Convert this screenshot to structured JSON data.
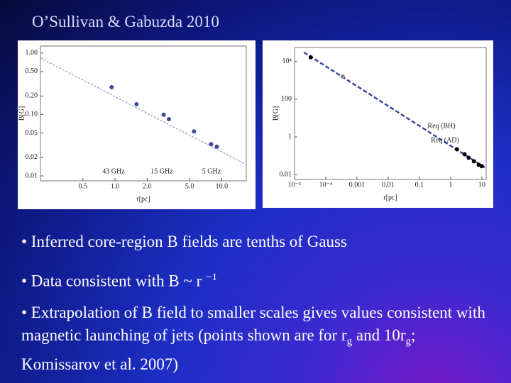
{
  "title": "O’Sullivan & Gabuzda 2010",
  "bullets": [
    [
      "• Inferred core-region B fields are tenths of Gauss"
    ],
    [
      "• Data consistent with B ~ r ",
      "−1"
    ],
    [
      "• Extrapolation of B field to smaller scales gives values consistent with magnetic launching of jets (points shown are for r",
      "g",
      " and 10r",
      "g",
      "; Komissarov et al. 2007)"
    ]
  ],
  "chart_data": [
    {
      "type": "scatter",
      "xscale": "log",
      "yscale": "log",
      "xlabel": "r[pc]",
      "ylabel": "B[G]",
      "xlim": [
        0.2,
        17
      ],
      "ylim": [
        0.0083,
        1.3
      ],
      "xticks": [
        0.5,
        {
          "value": 1,
          "label": "1.0"
        },
        {
          "value": 2,
          "label": "2.0"
        },
        {
          "value": 5,
          "label": "5.0"
        },
        {
          "value": 10,
          "label": "10.0"
        }
      ],
      "yticks": [
        0.01,
        0.02,
        0.05,
        {
          "value": 0.1,
          "label": "0.10"
        },
        {
          "value": 0.2,
          "label": "0.20"
        },
        {
          "value": 0.5,
          "label": "0.50"
        },
        {
          "value": 1,
          "label": "1.00"
        }
      ],
      "series": [
        {
          "color": "#3b4a96",
          "x": [
            0.93,
            1.59,
            2.86,
            3.2,
            5.5,
            7.96,
            9.0
          ],
          "values": [
            0.278,
            0.147,
            0.099,
            0.084,
            0.053,
            0.033,
            0.03
          ]
        }
      ],
      "fit": {
        "color": "#7a86b8",
        "x": [
          0.2,
          17
        ],
        "y": [
          0.83,
          0.0153
        ]
      },
      "annotations": [
        "43 GHz",
        "15 GHz",
        "5 GHz"
      ]
    },
    {
      "type": "scatter",
      "xscale": "log",
      "yscale": "log",
      "xlabel": "r[pc]",
      "ylabel": "B[G]",
      "xlim": [
        1e-05,
        13.8
      ],
      "ylim": [
        0.0055,
        56000
      ],
      "xticks": [
        {
          "value": 1e-05,
          "label": "10⁻⁵"
        },
        {
          "value": 0.0001,
          "label": "10⁻⁴"
        },
        0.001,
        0.01,
        0.1,
        1,
        10
      ],
      "yticks": [
        0.01,
        1,
        100,
        {
          "value": 10000,
          "label": "10⁴"
        }
      ],
      "series": [
        {
          "color": "#000000",
          "x": [
            3.3e-05,
            1.6,
            2.8,
            3.8,
            5.6,
            8.0,
            10
          ],
          "values": [
            17000,
            0.22,
            0.12,
            0.078,
            0.051,
            0.033,
            0.028
          ]
        },
        {
          "color": "#888888",
          "x": [
            0.00035
          ],
          "values": [
            1620
          ]
        }
      ],
      "fit": {
        "color": "#3b4a96",
        "x": [
          2e-05,
          12.5
        ],
        "y": [
          31000,
          0.0236
        ]
      },
      "annotations": [
        "Req (BH)",
        "Req (AD)"
      ]
    }
  ]
}
